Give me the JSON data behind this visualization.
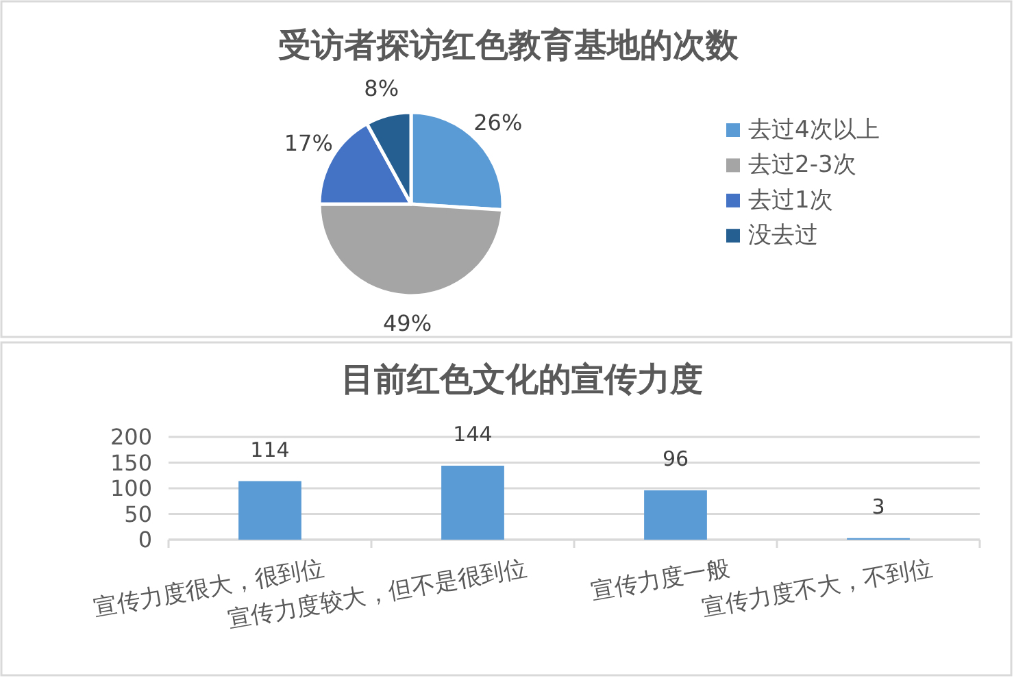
{
  "chart_data": [
    {
      "type": "pie",
      "title": "受访者探访红色教育基地的次数",
      "categories": [
        "去过4次以上",
        "去过2-3次",
        "去过1次",
        "没去过"
      ],
      "values": [
        26,
        49,
        17,
        8
      ],
      "colors": [
        "#5b9bd5",
        "#a5a5a5",
        "#4472c4",
        "#255e91"
      ],
      "value_labels": [
        "26%",
        "49%",
        "17%",
        "8%"
      ],
      "legend": "right"
    },
    {
      "type": "bar",
      "title": "目前红色文化的宣传力度",
      "categories": [
        "宣传力度很大，很到位",
        "宣传力度较大，但不是很到位",
        "宣传力度一般",
        "宣传力度不大，不到位"
      ],
      "values": [
        114,
        144,
        96,
        3
      ],
      "color": "#5b9bd5",
      "ylim": [
        0,
        200
      ],
      "yticks": [
        0,
        50,
        100,
        150,
        200
      ],
      "grid": "y",
      "data_labels": true
    }
  ]
}
